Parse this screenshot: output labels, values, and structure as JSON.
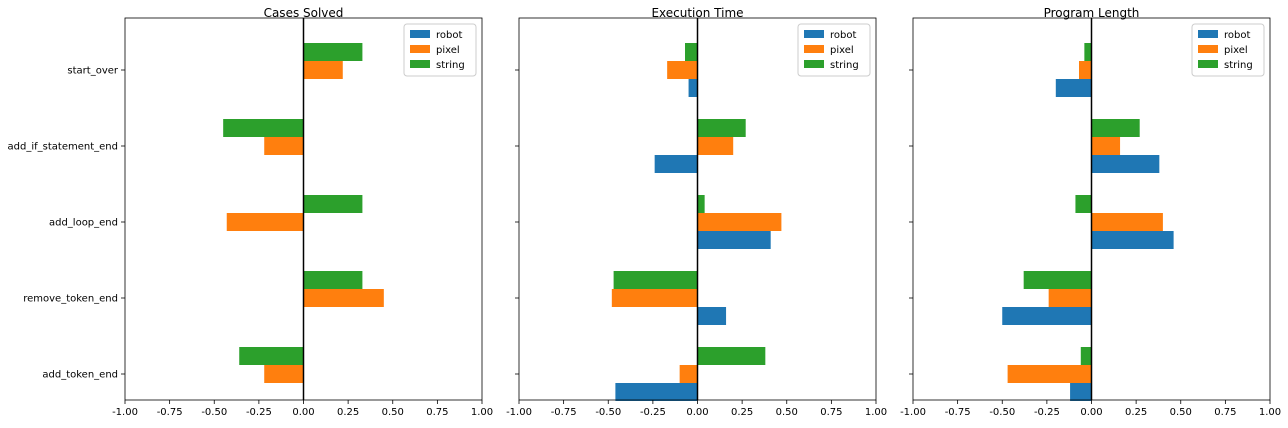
{
  "chart_data": [
    {
      "type": "bar",
      "orientation": "horizontal",
      "title": "Cases Solved",
      "categories": [
        "add_token_end",
        "remove_token_end",
        "add_loop_end",
        "add_if_statement_end",
        "start_over"
      ],
      "xlim": [
        -1.0,
        1.0
      ],
      "xticks": [
        "-1.00",
        "-0.75",
        "-0.50",
        "-0.25",
        "0.00",
        "0.25",
        "0.50",
        "0.75",
        "1.00"
      ],
      "legend": "top-right",
      "series": [
        {
          "name": "robot",
          "color": "#1f77b4",
          "values": [
            0.0,
            0.0,
            0.0,
            0.0,
            0.0
          ]
        },
        {
          "name": "pixel",
          "color": "#ff7f0e",
          "values": [
            -0.22,
            0.45,
            -0.43,
            -0.22,
            0.22
          ]
        },
        {
          "name": "string",
          "color": "#2ca02c",
          "values": [
            -0.36,
            0.33,
            0.33,
            -0.45,
            0.33
          ]
        }
      ]
    },
    {
      "type": "bar",
      "orientation": "horizontal",
      "title": "Execution Time",
      "categories": [
        "add_token_end",
        "remove_token_end",
        "add_loop_end",
        "add_if_statement_end",
        "start_over"
      ],
      "xlim": [
        -1.0,
        1.0
      ],
      "xticks": [
        "-1.00",
        "-0.75",
        "-0.50",
        "-0.25",
        "0.00",
        "0.25",
        "0.50",
        "0.75",
        "1.00"
      ],
      "legend": "top-right",
      "series": [
        {
          "name": "robot",
          "color": "#1f77b4",
          "values": [
            -0.46,
            0.16,
            0.41,
            -0.24,
            -0.05
          ]
        },
        {
          "name": "pixel",
          "color": "#ff7f0e",
          "values": [
            -0.1,
            -0.48,
            0.47,
            0.2,
            -0.17
          ]
        },
        {
          "name": "string",
          "color": "#2ca02c",
          "values": [
            0.38,
            -0.47,
            0.04,
            0.27,
            -0.07
          ]
        }
      ]
    },
    {
      "type": "bar",
      "orientation": "horizontal",
      "title": "Program Length",
      "categories": [
        "add_token_end",
        "remove_token_end",
        "add_loop_end",
        "add_if_statement_end",
        "start_over"
      ],
      "xlim": [
        -1.0,
        1.0
      ],
      "xticks": [
        "-1.00",
        "-0.75",
        "-0.50",
        "-0.25",
        "0.00",
        "0.25",
        "0.50",
        "0.75",
        "1.00"
      ],
      "legend": "top-right",
      "series": [
        {
          "name": "robot",
          "color": "#1f77b4",
          "values": [
            -0.12,
            -0.5,
            0.46,
            0.38,
            -0.2
          ]
        },
        {
          "name": "pixel",
          "color": "#ff7f0e",
          "values": [
            -0.47,
            -0.24,
            0.4,
            0.16,
            -0.07
          ]
        },
        {
          "name": "string",
          "color": "#2ca02c",
          "values": [
            -0.06,
            -0.38,
            -0.09,
            0.27,
            -0.04
          ]
        }
      ]
    }
  ]
}
